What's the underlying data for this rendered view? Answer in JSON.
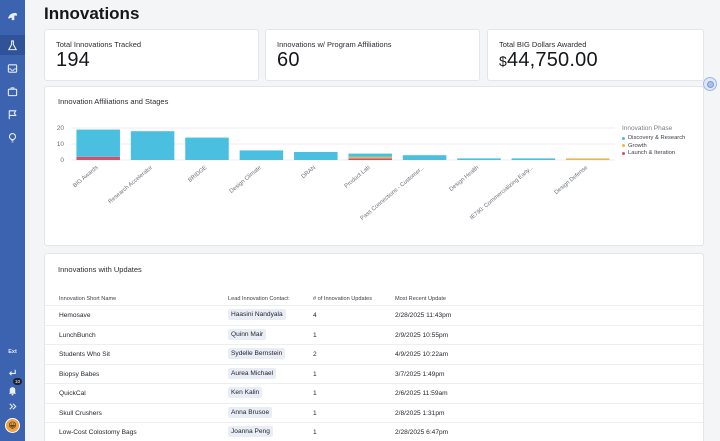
{
  "page": {
    "title": "Innovations"
  },
  "stats": [
    {
      "label": "Total Innovations Tracked",
      "value": "194"
    },
    {
      "label": "Innovations w/ Program Affiliations",
      "value": "60"
    },
    {
      "label": "Total BIG Dollars Awarded",
      "currency": "$",
      "value": "44,750.00"
    }
  ],
  "sidebar": {
    "icons": [
      "logo-icon",
      "flask-icon",
      "inbox-icon",
      "briefcase-icon",
      "flag-icon",
      "lightbulb-icon"
    ],
    "ext_label": "Ext",
    "badge_count": "10"
  },
  "chart_section": {
    "title": "Innovation Affiliations and Stages"
  },
  "chart_data": {
    "type": "bar",
    "stacked": true,
    "categories": [
      "BIG Awards",
      "Research Accelerator",
      "BRIDGE",
      "Design Climate",
      "DRAN",
      "Product Lab",
      "Pass Connections - Customer...",
      "Design Health",
      "IE790: Commercializing Early...",
      "Design Defense"
    ],
    "series": [
      {
        "name": "Discovery & Research",
        "color": "#4bbfe0",
        "values": [
          17,
          18,
          14,
          6,
          5,
          2,
          3,
          1,
          1,
          0
        ]
      },
      {
        "name": "Growth",
        "color": "#e9b949",
        "values": [
          0,
          0,
          0,
          0,
          0,
          1,
          0,
          0,
          0,
          1
        ]
      },
      {
        "name": "Launch & Iteration",
        "color": "#d94f6b",
        "values": [
          2,
          0,
          0,
          0,
          0,
          1,
          0,
          0,
          0,
          0
        ]
      }
    ],
    "yticks": [
      0,
      10,
      20
    ],
    "ylim": [
      0,
      20
    ],
    "legend_title": "Innovation Phase",
    "legend_position": "right"
  },
  "updates_section": {
    "title": "Innovations with Updates",
    "columns": [
      "Innovation Short Name",
      "Lead Innovation Contact",
      "# of Innovation Updates",
      "Most Recent Update"
    ],
    "rows": [
      {
        "name": "Hemosave",
        "contact": "Haasini Nandyala",
        "updates": "4",
        "date": "2/28/2025 11:43pm"
      },
      {
        "name": "LunchBunch",
        "contact": "Quinn Mair",
        "updates": "1",
        "date": "2/9/2025 10:55pm"
      },
      {
        "name": "Students Who Sit",
        "contact": "Sydelle Bernstein",
        "updates": "2",
        "date": "4/9/2025 10:22am"
      },
      {
        "name": "Biopsy Babes",
        "contact": "Aurea Michael",
        "updates": "1",
        "date": "3/7/2025 1:49pm"
      },
      {
        "name": "QuickCal",
        "contact": "Ken Kalin",
        "updates": "1",
        "date": "2/6/2025 11:59am"
      },
      {
        "name": "Skull Crushers",
        "contact": "Anna Brusoe",
        "updates": "1",
        "date": "2/8/2025 1:31pm"
      },
      {
        "name": "Low-Cost Colostomy Bags",
        "contact": "Joanna Peng",
        "updates": "1",
        "date": "2/28/2025 6:47pm"
      }
    ]
  }
}
